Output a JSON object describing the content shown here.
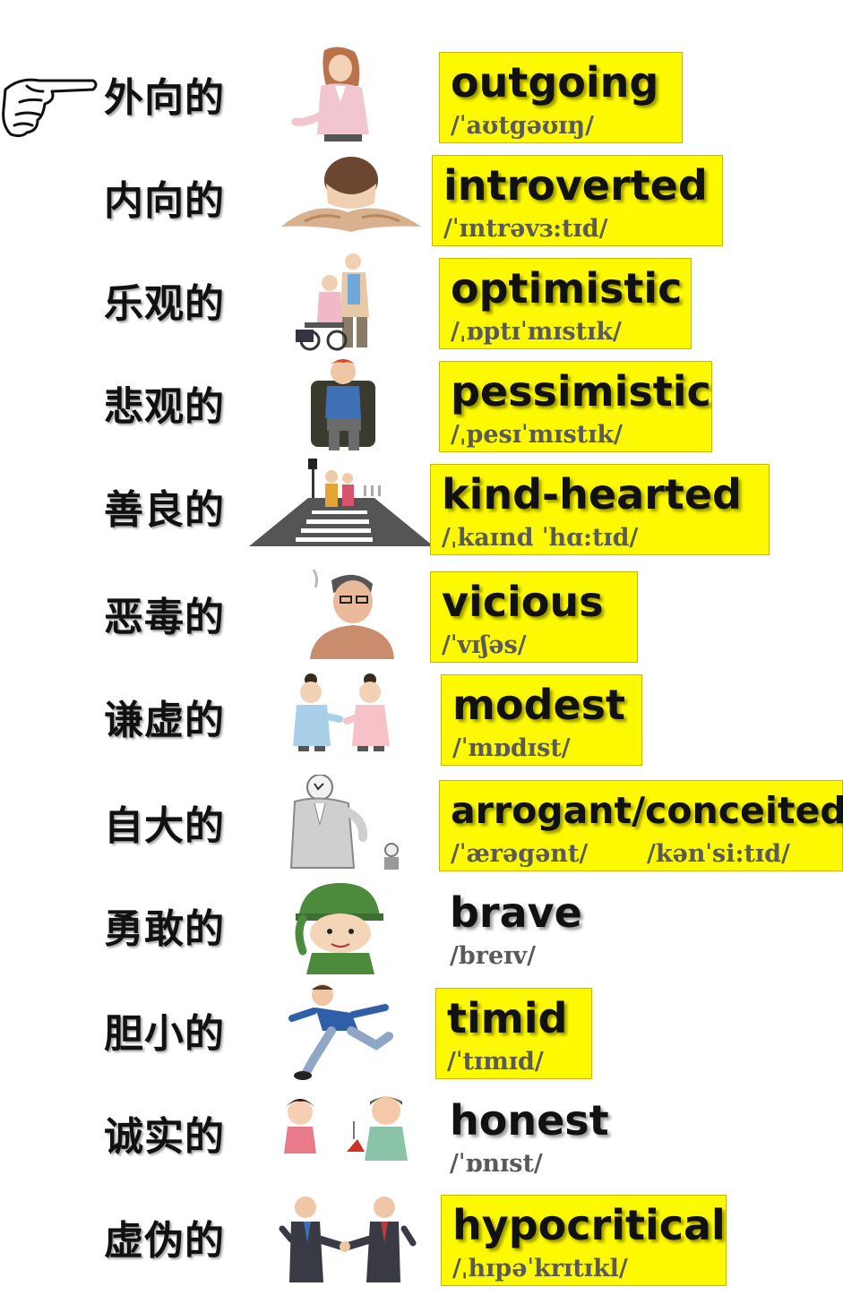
{
  "vocabulary": [
    {
      "cn": "外向的",
      "en": "outgoing",
      "ipa": "/ˈaʊtgəʊɪŋ/",
      "icon": "outgoing-woman-icon",
      "highlighted": true
    },
    {
      "cn": "内向的",
      "en": "introverted",
      "ipa": "/ˈɪntrəvɜ:tɪd/",
      "icon": "introverted-hiding-boy-icon",
      "highlighted": true
    },
    {
      "cn": "乐观的",
      "en": "optimistic",
      "ipa": "/ˌɒptɪˈmɪstɪk/",
      "icon": "optimistic-wheelchair-pair-icon",
      "highlighted": true
    },
    {
      "cn": "悲观的",
      "en": "pessimistic",
      "ipa": "/ˌpesɪˈmɪstɪk/",
      "icon": "pessimistic-man-chair-icon",
      "highlighted": true
    },
    {
      "cn": "善良的",
      "en": "kind-hearted",
      "ipa": "/ˌkaɪnd ˈhɑ:tɪd/",
      "icon": "kind-crosswalk-icon",
      "highlighted": true
    },
    {
      "cn": "恶毒的",
      "en": "vicious",
      "ipa": "/ˈvɪʃəs/",
      "icon": "vicious-smoking-man-icon",
      "highlighted": true
    },
    {
      "cn": "谦虚的",
      "en": "modest",
      "ipa": "/ˈmɒdɪst/",
      "icon": "modest-bowing-pair-icon",
      "highlighted": true
    },
    {
      "cn": "自大的",
      "en": "arrogant/conceited",
      "ipa": "/ˈærəgənt/       /kənˈsi:tɪd/",
      "icon": "arrogant-big-man-icon",
      "highlighted": true
    },
    {
      "cn": "勇敢的",
      "en": "brave",
      "ipa": "/breɪv/",
      "icon": "brave-soldier-icon",
      "highlighted": false
    },
    {
      "cn": "胆小的",
      "en": "timid",
      "ipa": "/ˈtɪmɪd/",
      "icon": "timid-running-man-icon",
      "highlighted": true
    },
    {
      "cn": "诚实的",
      "en": "honest",
      "ipa": "/ˈɒnɪst/",
      "icon": "honest-children-icon",
      "highlighted": false
    },
    {
      "cn": "虚伪的",
      "en": "hypocritical",
      "ipa": "/ˌhɪpəˈkrɪtɪkl/",
      "icon": "hypocritical-handshake-icon",
      "highlighted": true
    }
  ],
  "colors": {
    "highlight": "#fdf900",
    "text": "#111111",
    "ipa": "#5a5a5a"
  }
}
